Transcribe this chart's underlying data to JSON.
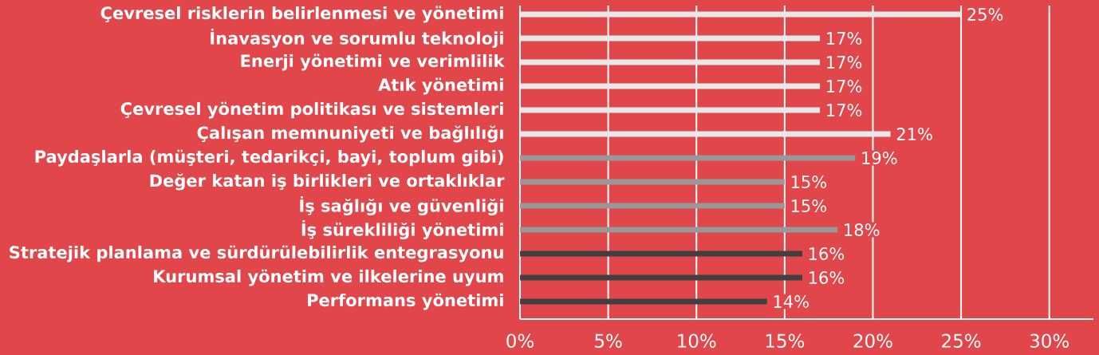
{
  "chart_data": {
    "type": "bar",
    "orientation": "horizontal",
    "categories": [
      "Çevresel risklerin belirlenmesi ve yönetimi",
      "İnavasyon ve sorumlu teknoloji",
      "Enerji yönetimi ve verimlilik",
      "Atık yönetimi",
      "Çevresel yönetim politikası ve sistemleri",
      "Çalışan memnuniyeti ve bağlılığı",
      "Paydaşlarla (müşteri, tedarikçi, bayi, toplum gibi)",
      "Değer katan iş birlikleri ve ortaklıklar",
      "İş sağlığı ve güvenliği",
      "İş sürekliliği yönetimi",
      "Stratejik planlama ve sürdürülebilirlik entegrasyonu",
      "Kurumsal yönetim ve ilkelerine uyum",
      "Performans yönetimi"
    ],
    "values": [
      25,
      17,
      17,
      17,
      17,
      21,
      19,
      15,
      15,
      18,
      16,
      16,
      14
    ],
    "colors": [
      "#e8e8e8",
      "#e8e8e8",
      "#e8e8e8",
      "#e8e8e8",
      "#e8e8e8",
      "#e8e8e8",
      "#989898",
      "#989898",
      "#989898",
      "#989898",
      "#404040",
      "#404040",
      "#404040"
    ],
    "value_labels": [
      "25%",
      "17%",
      "17%",
      "17%",
      "17%",
      "21%",
      "19%",
      "15%",
      "15%",
      "18%",
      "16%",
      "16%",
      "14%"
    ],
    "xlim": [
      0,
      32.5
    ],
    "xticks": [
      {
        "value": 0,
        "label": "0%"
      },
      {
        "value": 5,
        "label": "5%"
      },
      {
        "value": 10,
        "label": "10%"
      },
      {
        "value": 15,
        "label": "15%"
      },
      {
        "value": 20,
        "label": "20%"
      },
      {
        "value": 25,
        "label": "25%"
      },
      {
        "value": 30,
        "label": "30%"
      }
    ],
    "grid": "x"
  }
}
